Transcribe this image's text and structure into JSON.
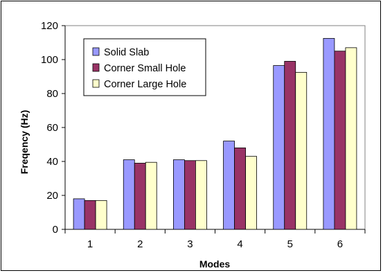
{
  "chart_data": {
    "type": "bar",
    "title": "",
    "xlabel": "Modes",
    "ylabel": "Freqency (Hz)",
    "categories": [
      "1",
      "2",
      "3",
      "4",
      "5",
      "6"
    ],
    "ylim": [
      0,
      120
    ],
    "yticks": [
      0,
      20,
      40,
      60,
      80,
      100,
      120
    ],
    "grid": false,
    "legend_position": "top-left",
    "series": [
      {
        "name": "Solid Slab",
        "color": "#9999ff",
        "values": [
          18,
          41,
          41,
          52,
          96.5,
          112.5
        ]
      },
      {
        "name": "Corner Small Hole",
        "color": "#993366",
        "values": [
          17,
          39,
          40.5,
          48,
          99,
          105
        ]
      },
      {
        "name": "Corner Large Hole",
        "color": "#ffffcc",
        "values": [
          17,
          39.5,
          40.5,
          43,
          92.5,
          107
        ]
      }
    ]
  }
}
